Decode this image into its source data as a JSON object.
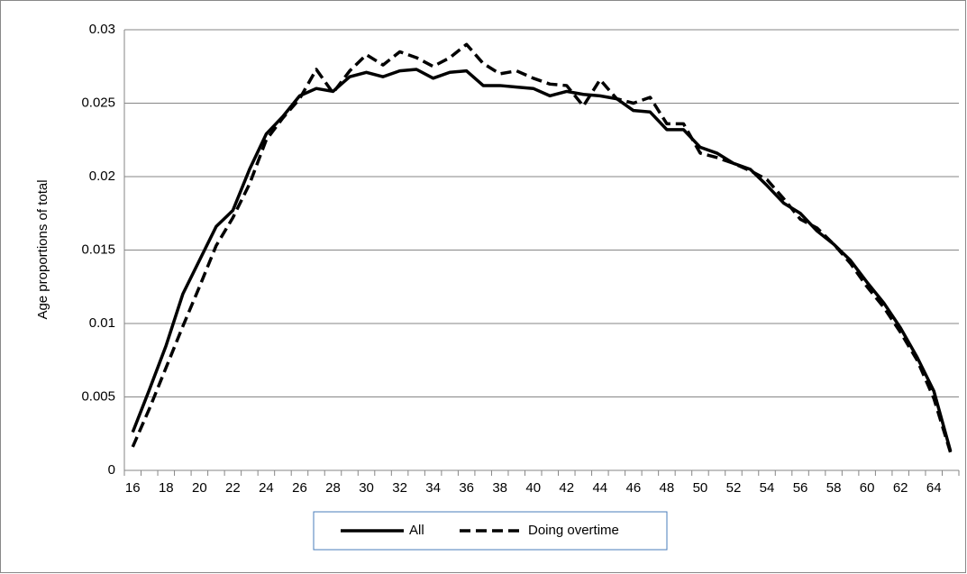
{
  "chart_data": {
    "type": "line",
    "y_label": "Age proportions of total",
    "categories": [
      16,
      null,
      18,
      null,
      20,
      null,
      22,
      null,
      24,
      null,
      26,
      null,
      28,
      null,
      30,
      null,
      32,
      null,
      34,
      null,
      36,
      null,
      38,
      null,
      40,
      null,
      42,
      null,
      44,
      null,
      46,
      null,
      48,
      null,
      50,
      null,
      52,
      null,
      54,
      null,
      56,
      null,
      58,
      null,
      60,
      null,
      62,
      null,
      64,
      null
    ],
    "series": [
      {
        "name": "All",
        "color": "#000000",
        "line_style": "solid",
        "values": [
          0.0026,
          0.0055,
          0.0085,
          0.012,
          0.0143,
          0.0166,
          0.0177,
          0.0205,
          0.0229,
          0.0241,
          0.0255,
          0.026,
          0.0258,
          0.0268,
          0.0271,
          0.0268,
          0.0272,
          0.0273,
          0.0267,
          0.0271,
          0.0272,
          0.0262,
          0.0262,
          0.0261,
          0.026,
          0.0255,
          0.0258,
          0.0256,
          0.0255,
          0.0253,
          0.0245,
          0.0244,
          0.0232,
          0.0232,
          0.022,
          0.0216,
          0.0209,
          0.0205,
          0.0194,
          0.0182,
          0.0175,
          0.0163,
          0.0154,
          0.0143,
          0.0128,
          0.0114,
          0.0097,
          0.0077,
          0.0054,
          0.0013
        ]
      },
      {
        "name": "Doing overtime",
        "color": "#000000",
        "line_style": "dashed",
        "values": [
          0.0016,
          0.0042,
          0.007,
          0.0098,
          0.0125,
          0.0153,
          0.0172,
          0.0195,
          0.0225,
          0.024,
          0.0253,
          0.0273,
          0.0257,
          0.0272,
          0.0283,
          0.0276,
          0.0285,
          0.0281,
          0.0275,
          0.0281,
          0.029,
          0.0277,
          0.027,
          0.0272,
          0.0267,
          0.0263,
          0.0262,
          0.0248,
          0.0266,
          0.0253,
          0.025,
          0.0254,
          0.0236,
          0.0236,
          0.0216,
          0.0213,
          0.0209,
          0.0204,
          0.0198,
          0.0185,
          0.0171,
          0.0165,
          0.0154,
          0.0141,
          0.0125,
          0.0111,
          0.0094,
          0.0075,
          0.0049,
          0.0012
        ]
      }
    ],
    "ylim": [
      0,
      0.03
    ],
    "yticks": [
      0,
      0.005,
      0.01,
      0.015,
      0.02,
      0.025,
      0.03
    ],
    "grid": true,
    "legend": "bottom"
  }
}
